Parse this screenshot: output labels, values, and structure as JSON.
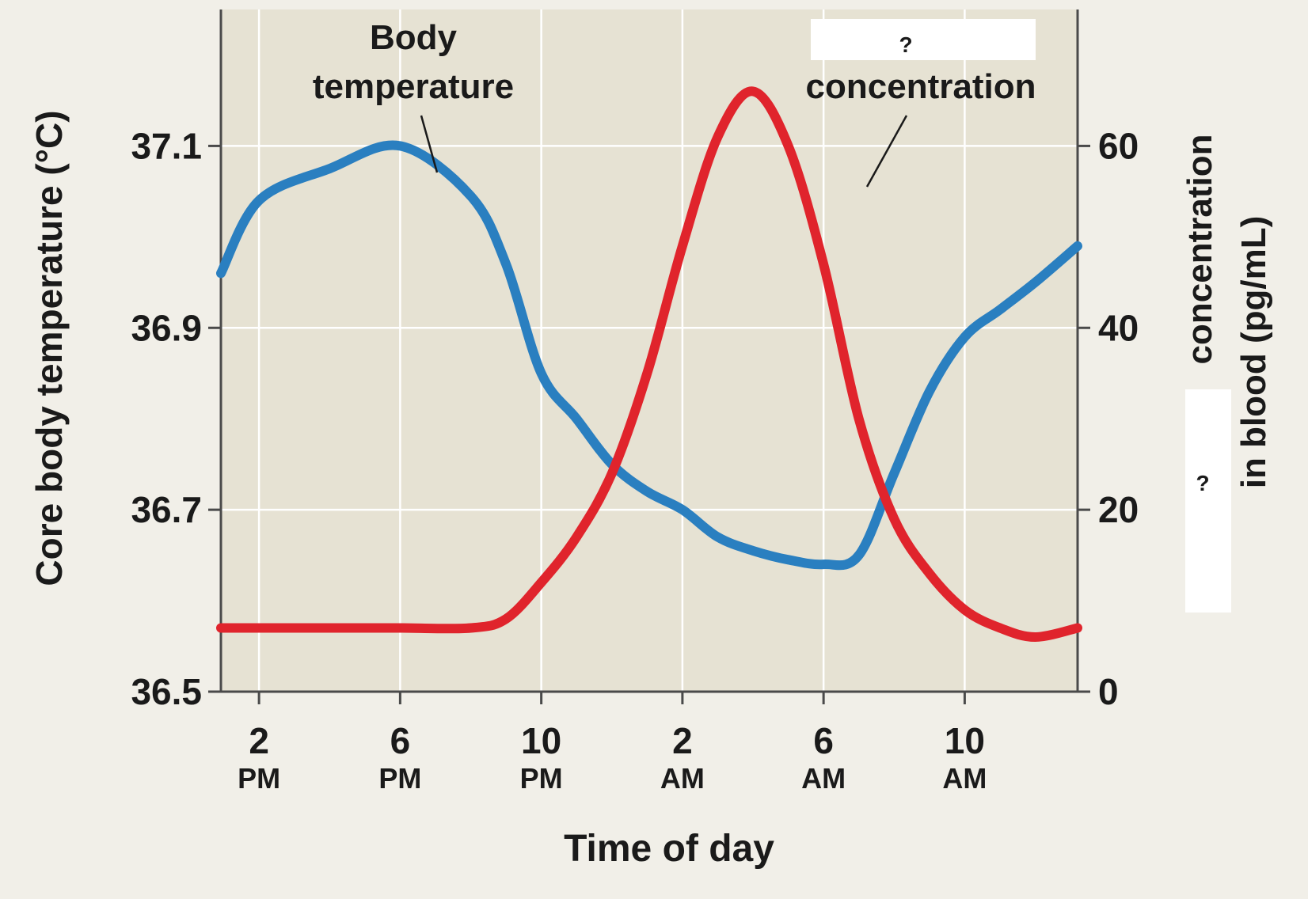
{
  "colors": {
    "page_background": "#f1efe8",
    "plot_background": "#e6e2d3",
    "gridline": "#ffffff",
    "axis": "#4a4a4a",
    "temperature_series": "#2a7fc0",
    "hormone_series": "#e0242c",
    "text": "#1a1a1a",
    "mask_box": "#ffffff"
  },
  "chart_data": {
    "type": "line",
    "title": "",
    "xlabel": "Time of day",
    "ylabel_left": "Core body temperature (°C)",
    "ylabel_right_lines": [
      "concentration",
      "in blood (pg/mL)"
    ],
    "right_axis_masked_label": "?",
    "x_unit": "hours elapsed on the displayed time axis (0 = 2 PM)",
    "xlim": [
      -1.08,
      23.2
    ],
    "x_ticks": [
      {
        "x": 0,
        "line1": "2",
        "line2": "PM"
      },
      {
        "x": 4,
        "line1": "6",
        "line2": "PM"
      },
      {
        "x": 8,
        "line1": "10",
        "line2": "PM"
      },
      {
        "x": 12,
        "line1": "2",
        "line2": "AM"
      },
      {
        "x": 16,
        "line1": "6",
        "line2": "AM"
      },
      {
        "x": 20,
        "line1": "10",
        "line2": "AM"
      }
    ],
    "y_left": {
      "lim": [
        36.5,
        37.25
      ],
      "ticks": [
        36.5,
        36.7,
        36.9,
        37.1
      ],
      "tick_labels": [
        "36.5",
        "36.7",
        "36.9",
        "37.1"
      ]
    },
    "y_right": {
      "lim": [
        0,
        75
      ],
      "ticks": [
        0,
        20,
        40,
        60
      ],
      "tick_labels": [
        "0",
        "20",
        "40",
        "60"
      ]
    },
    "grid": true,
    "series": [
      {
        "name": "Body temperature",
        "axis": "left",
        "label_lines": [
          "Body",
          "temperature"
        ],
        "x": [
          -1.08,
          0,
          2,
          4,
          6,
          7,
          8,
          9,
          10,
          11,
          12,
          13,
          14,
          15,
          16,
          17,
          18,
          19,
          20,
          21,
          22,
          23.2
        ],
        "y": [
          36.96,
          37.04,
          37.075,
          37.1,
          37.045,
          36.97,
          36.85,
          36.8,
          36.75,
          36.72,
          36.7,
          36.67,
          36.655,
          36.645,
          36.64,
          36.65,
          36.74,
          36.83,
          36.89,
          36.92,
          36.95,
          36.99
        ]
      },
      {
        "name": "? concentration",
        "axis": "right",
        "masked_name": "?",
        "label_text": "concentration",
        "x": [
          -1.08,
          0,
          2,
          4,
          6,
          7,
          8,
          9,
          10,
          11,
          12,
          13,
          14,
          15,
          16,
          17,
          18,
          19,
          20,
          21,
          22,
          23.2
        ],
        "y": [
          7,
          7,
          7,
          7,
          7,
          8,
          12,
          17,
          24,
          35,
          49,
          61,
          66,
          60,
          47,
          30,
          19,
          13,
          9,
          7,
          6,
          7
        ]
      }
    ]
  }
}
